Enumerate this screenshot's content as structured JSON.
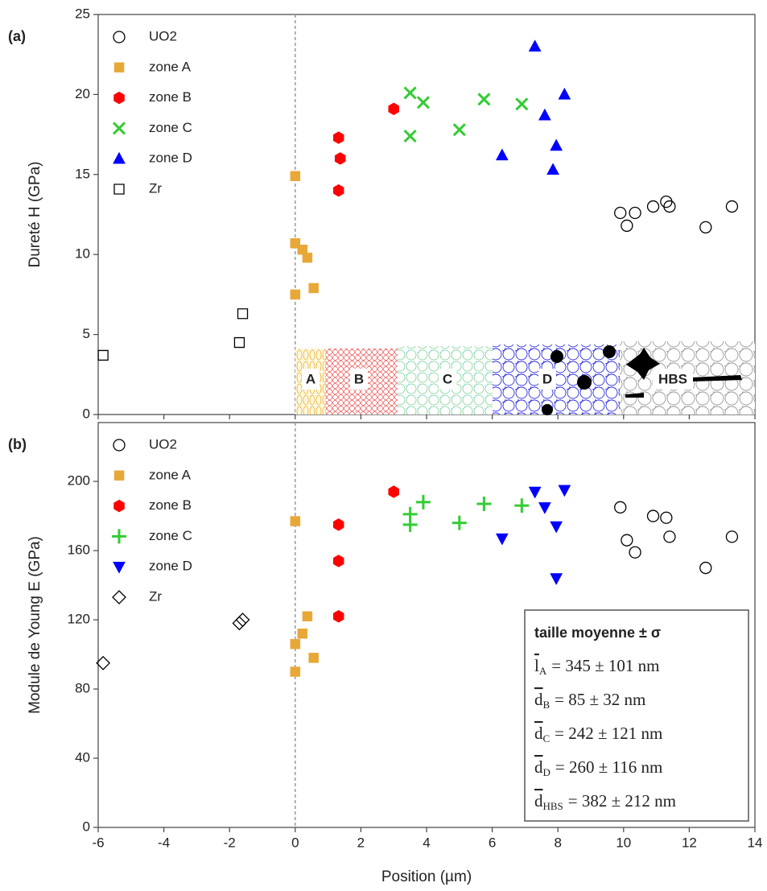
{
  "chart_data": [
    {
      "type": "scatter",
      "panel_label": "(a)",
      "y_label": "Dureté H (GPa)",
      "xlim": [
        -6,
        14
      ],
      "xticks": [
        -6,
        -4,
        -2,
        0,
        2,
        4,
        6,
        8,
        10,
        12,
        14
      ],
      "show_xtick_labels": false,
      "ylim": [
        0,
        25
      ],
      "yticks": [
        0,
        5,
        10,
        15,
        20,
        25
      ],
      "vline": 0,
      "legend": "upper left",
      "inset_labels": [
        "A",
        "B",
        "C",
        "D",
        "HBS"
      ],
      "series": [
        {
          "name": "UO2",
          "color": "#000000",
          "marker": "open-circle",
          "x": [
            9.9,
            10.1,
            10.35,
            10.9,
            11.3,
            11.4,
            12.5,
            13.3
          ],
          "values": [
            12.6,
            11.8,
            12.6,
            13.0,
            13.3,
            13.0,
            11.7,
            13.0
          ]
        },
        {
          "name": "zone A",
          "color": "#e8a838",
          "marker": "square",
          "x": [
            0,
            0,
            0.22,
            0.37,
            0.56,
            0
          ],
          "values": [
            14.9,
            10.7,
            10.3,
            9.8,
            7.9,
            7.5
          ]
        },
        {
          "name": "zone B",
          "color": "#ff0000",
          "marker": "hexagon",
          "x": [
            1.32,
            1.37,
            1.32,
            3.0
          ],
          "values": [
            17.3,
            16.0,
            14.0,
            19.1
          ]
        },
        {
          "name": "zone C",
          "color": "#33cc33",
          "marker": "x",
          "x": [
            3.5,
            3.9,
            3.5,
            5.0,
            5.75,
            6.9
          ],
          "values": [
            20.1,
            19.5,
            17.4,
            17.8,
            19.7,
            19.4
          ]
        },
        {
          "name": "zone D",
          "color": "#0000ff",
          "marker": "triangle-up",
          "x": [
            7.3,
            7.6,
            8.2,
            6.3,
            7.95,
            7.85
          ],
          "values": [
            23.0,
            18.7,
            20.0,
            16.2,
            16.8,
            15.3
          ]
        },
        {
          "name": "Zr",
          "color": "#000000",
          "marker": "open-square",
          "x": [
            -5.85,
            -1.7,
            -1.6
          ],
          "values": [
            3.7,
            4.5,
            6.3
          ]
        }
      ]
    },
    {
      "type": "scatter",
      "panel_label": "(b)",
      "y_label": "Module de Young E (GPa)",
      "x_label": "Position (µm)",
      "xlim": [
        -6,
        14
      ],
      "xticks": [
        -6,
        -4,
        -2,
        0,
        2,
        4,
        6,
        8,
        10,
        12,
        14
      ],
      "show_xtick_labels": true,
      "ylim": [
        0,
        234
      ],
      "yticks": [
        0,
        40,
        80,
        120,
        160,
        200
      ],
      "vline": 0,
      "legend": "upper left",
      "series": [
        {
          "name": "UO2",
          "color": "#000000",
          "marker": "open-circle",
          "x": [
            9.9,
            10.1,
            10.35,
            10.9,
            11.3,
            11.4,
            12.5,
            13.3
          ],
          "values": [
            185,
            166,
            159,
            180,
            179,
            168,
            150,
            168
          ]
        },
        {
          "name": "zone A",
          "color": "#e8a838",
          "marker": "square",
          "x": [
            0,
            0,
            0.22,
            0.37,
            0.56,
            0
          ],
          "values": [
            177,
            106,
            112,
            122,
            98,
            90
          ]
        },
        {
          "name": "zone B",
          "color": "#ff0000",
          "marker": "hexagon",
          "x": [
            1.32,
            1.32,
            1.32,
            3.0
          ],
          "values": [
            175,
            154,
            122,
            194
          ]
        },
        {
          "name": "zone C",
          "color": "#33cc33",
          "marker": "plus",
          "x": [
            3.5,
            3.5,
            3.9,
            5.0,
            5.75,
            6.9
          ],
          "values": [
            181,
            175,
            188,
            176,
            187,
            186
          ]
        },
        {
          "name": "zone D",
          "color": "#0000ff",
          "marker": "triangle-down",
          "x": [
            6.3,
            7.3,
            7.6,
            7.95,
            8.2,
            7.95
          ],
          "values": [
            167,
            194,
            185,
            174,
            195,
            144
          ]
        },
        {
          "name": "Zr",
          "color": "#000000",
          "marker": "open-diamond",
          "x": [
            -5.85,
            -1.7,
            -1.6
          ],
          "values": [
            95,
            118,
            120
          ]
        }
      ],
      "textbox": {
        "title": "taille moyenne ± σ",
        "rows": [
          {
            "symbol": "l",
            "subscript": "A",
            "text": "= 345  ± 101 nm"
          },
          {
            "symbol": "d",
            "subscript": "B",
            "text": "= 85  ± 32 nm"
          },
          {
            "symbol": "d",
            "subscript": "C",
            "text": "= 242  ± 121 nm"
          },
          {
            "symbol": "d",
            "subscript": "D",
            "text": "= 260  ± 116 nm"
          },
          {
            "symbol": "d",
            "subscript": "HBS",
            "text": "= 382  ± 212 nm"
          }
        ]
      }
    }
  ]
}
